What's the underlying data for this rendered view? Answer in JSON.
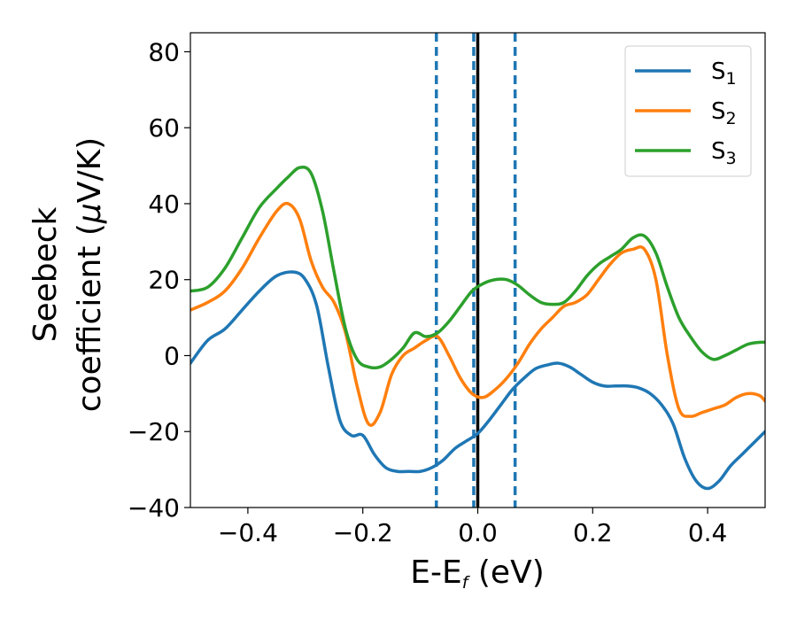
{
  "chart_data": {
    "type": "line",
    "xlabel": {
      "main": "E-E",
      "sub": "f",
      "unit": " (eV)"
    },
    "ylabel": {
      "line1": "Seebeck",
      "line2_pre": "coefficient  (",
      "mu": "μ",
      "line2_post": "V/K)"
    },
    "xlim": [
      -0.5,
      0.5
    ],
    "ylim": [
      -40,
      85
    ],
    "xticks": [
      -0.4,
      -0.2,
      0.0,
      0.2,
      0.4
    ],
    "xtick_labels": [
      "−0.4",
      "−0.2",
      "0.0",
      "0.2",
      "0.4"
    ],
    "yticks": [
      -40,
      -20,
      0,
      20,
      40,
      60,
      80
    ],
    "ytick_labels": [
      "−40",
      "−20",
      "0",
      "20",
      "40",
      "60",
      "80"
    ],
    "grid": false,
    "legend_position": "top-right",
    "series": [
      {
        "name": "S",
        "sub": "1",
        "color": "#1f77b4",
        "x": [
          -0.5,
          -0.47,
          -0.44,
          -0.41,
          -0.38,
          -0.35,
          -0.32,
          -0.3,
          -0.28,
          -0.26,
          -0.24,
          -0.22,
          -0.2,
          -0.18,
          -0.16,
          -0.14,
          -0.12,
          -0.1,
          -0.08,
          -0.06,
          -0.04,
          -0.02,
          0.0,
          0.02,
          0.04,
          0.06,
          0.08,
          0.1,
          0.12,
          0.14,
          0.16,
          0.18,
          0.2,
          0.22,
          0.24,
          0.26,
          0.28,
          0.3,
          0.32,
          0.34,
          0.36,
          0.38,
          0.4,
          0.42,
          0.44,
          0.46,
          0.48,
          0.5
        ],
        "y": [
          -2,
          4,
          7,
          12,
          17,
          21,
          22,
          20,
          13,
          -3,
          -17,
          -21,
          -21,
          -26,
          -29.5,
          -30.5,
          -30.5,
          -30.5,
          -29.5,
          -27.5,
          -24.5,
          -22.5,
          -20.5,
          -17,
          -13,
          -9,
          -6,
          -3.5,
          -2.5,
          -2,
          -3,
          -5,
          -7,
          -8,
          -8,
          -8,
          -8.5,
          -10,
          -13,
          -18,
          -27,
          -33,
          -35,
          -33,
          -29,
          -26,
          -23,
          -20
        ]
      },
      {
        "name": "S",
        "sub": "2",
        "color": "#ff7f0e",
        "x": [
          -0.5,
          -0.47,
          -0.44,
          -0.41,
          -0.38,
          -0.35,
          -0.33,
          -0.31,
          -0.29,
          -0.27,
          -0.25,
          -0.23,
          -0.21,
          -0.19,
          -0.17,
          -0.15,
          -0.13,
          -0.11,
          -0.09,
          -0.07,
          -0.05,
          -0.03,
          -0.01,
          0.01,
          0.03,
          0.05,
          0.07,
          0.09,
          0.11,
          0.13,
          0.15,
          0.17,
          0.19,
          0.21,
          0.23,
          0.25,
          0.27,
          0.29,
          0.31,
          0.33,
          0.35,
          0.37,
          0.39,
          0.41,
          0.43,
          0.45,
          0.47,
          0.49,
          0.5
        ],
        "y": [
          12,
          14,
          17,
          23,
          31,
          38,
          40,
          36,
          25,
          18,
          14,
          6,
          -8,
          -18,
          -15,
          -5,
          0,
          2,
          4,
          5,
          0,
          -6,
          -10,
          -11,
          -9,
          -6,
          -2,
          3,
          7,
          10,
          13,
          14,
          16,
          20,
          24,
          27,
          28,
          28,
          20,
          0,
          -14,
          -16,
          -15,
          -14,
          -13,
          -11,
          -10,
          -10.5,
          -12
        ]
      },
      {
        "name": "S",
        "sub": "3",
        "color": "#2ca02c",
        "x": [
          -0.5,
          -0.47,
          -0.44,
          -0.41,
          -0.38,
          -0.35,
          -0.33,
          -0.31,
          -0.29,
          -0.27,
          -0.25,
          -0.23,
          -0.21,
          -0.19,
          -0.17,
          -0.15,
          -0.13,
          -0.11,
          -0.09,
          -0.07,
          -0.05,
          -0.03,
          -0.01,
          0.01,
          0.03,
          0.05,
          0.07,
          0.09,
          0.11,
          0.13,
          0.15,
          0.17,
          0.19,
          0.21,
          0.23,
          0.25,
          0.27,
          0.29,
          0.31,
          0.33,
          0.35,
          0.37,
          0.39,
          0.41,
          0.43,
          0.45,
          0.47,
          0.49,
          0.5
        ],
        "y": [
          17,
          18,
          23,
          31,
          39,
          44,
          47,
          49.5,
          48,
          38,
          22,
          7,
          -1,
          -3,
          -3,
          -1,
          2,
          6,
          5,
          6,
          9,
          13,
          17,
          19,
          20,
          20,
          18.5,
          16,
          14,
          13.5,
          14,
          17,
          21,
          24,
          26,
          28,
          31,
          31.5,
          27,
          18,
          10,
          5,
          1,
          -1,
          0,
          1.5,
          3,
          3.5,
          3.5
        ]
      }
    ],
    "vlines": [
      {
        "x": -0.072,
        "style": "dashed",
        "color": "#1f77b4"
      },
      {
        "x": -0.007,
        "style": "dashed",
        "color": "#1f77b4"
      },
      {
        "x": 0.065,
        "style": "dashed",
        "color": "#1f77b4"
      },
      {
        "x": 0.0,
        "style": "solid",
        "color": "#000000"
      }
    ]
  }
}
